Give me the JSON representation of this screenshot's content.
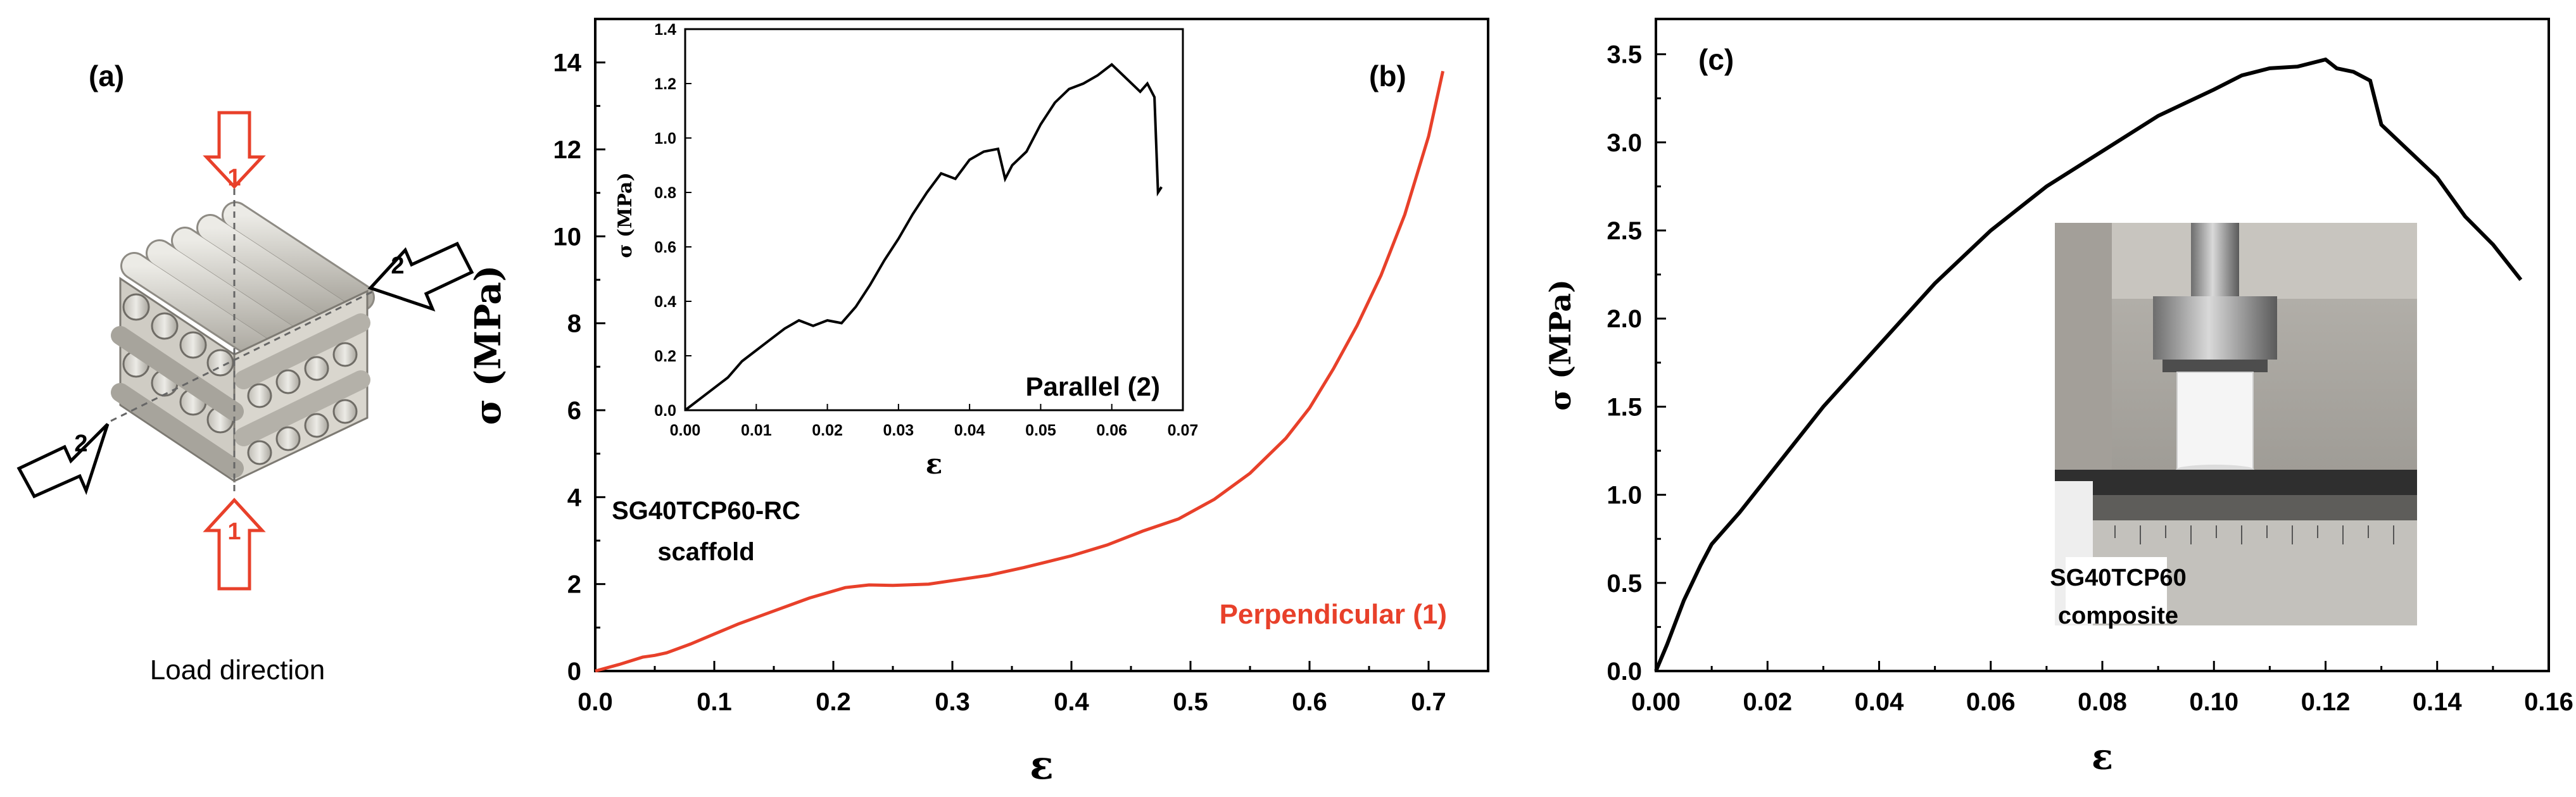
{
  "panel_a": {
    "label": "(a)",
    "caption": "Load direction",
    "dir1_top": "1",
    "dir1_bottom": "1",
    "dir2_right": "2",
    "dir2_left": "2",
    "colors": {
      "perpendicular_arrow": "#e8402a",
      "parallel_arrow": "#000000",
      "rod": "#d6d2c8"
    }
  },
  "chart_data": [
    {
      "id": "b_main",
      "type": "line",
      "panel_label": "(b)",
      "xlabel": "ε",
      "ylabel": "σ (MPa)",
      "xlim": [
        0.0,
        0.75
      ],
      "ylim": [
        0,
        15
      ],
      "xticks": [
        "0.0",
        "0.1",
        "0.2",
        "0.3",
        "0.4",
        "0.5",
        "0.6",
        "0.7"
      ],
      "yticks": [
        "0",
        "2",
        "4",
        "6",
        "8",
        "10",
        "12",
        "14"
      ],
      "annotation_line1": "SG40TCP60-RC",
      "annotation_line2": "scaffold",
      "series": [
        {
          "name": "Perpendicular (1)",
          "color": "#e8402a",
          "x": [
            0.0,
            0.02,
            0.04,
            0.05,
            0.06,
            0.08,
            0.1,
            0.12,
            0.15,
            0.18,
            0.21,
            0.23,
            0.25,
            0.28,
            0.3,
            0.33,
            0.36,
            0.4,
            0.43,
            0.46,
            0.49,
            0.52,
            0.55,
            0.58,
            0.6,
            0.62,
            0.64,
            0.66,
            0.68,
            0.7,
            0.712
          ],
          "y": [
            0.0,
            0.15,
            0.32,
            0.36,
            0.42,
            0.62,
            0.85,
            1.08,
            1.38,
            1.68,
            1.92,
            1.98,
            1.97,
            2.0,
            2.08,
            2.2,
            2.38,
            2.65,
            2.9,
            3.22,
            3.5,
            3.95,
            4.55,
            5.35,
            6.05,
            6.95,
            7.95,
            9.1,
            10.5,
            12.3,
            13.8
          ]
        }
      ]
    },
    {
      "id": "b_inset",
      "type": "line",
      "xlabel": "ε",
      "ylabel": "σ (MPa)",
      "xlim": [
        0.0,
        0.07
      ],
      "ylim": [
        0.0,
        1.4
      ],
      "xticks": [
        "0.00",
        "0.01",
        "0.02",
        "0.03",
        "0.04",
        "0.05",
        "0.06",
        "0.07"
      ],
      "yticks": [
        "0.0",
        "0.2",
        "0.4",
        "0.6",
        "0.8",
        "1.0",
        "1.2",
        "1.4"
      ],
      "series": [
        {
          "name": "Parallel (2)",
          "color": "#000000",
          "x": [
            0.0,
            0.003,
            0.006,
            0.008,
            0.01,
            0.012,
            0.014,
            0.016,
            0.018,
            0.02,
            0.022,
            0.024,
            0.026,
            0.028,
            0.03,
            0.032,
            0.034,
            0.036,
            0.038,
            0.04,
            0.042,
            0.044,
            0.045,
            0.046,
            0.048,
            0.05,
            0.052,
            0.054,
            0.056,
            0.058,
            0.06,
            0.062,
            0.064,
            0.065,
            0.066,
            0.0665,
            0.067
          ],
          "y": [
            0.0,
            0.06,
            0.12,
            0.18,
            0.22,
            0.26,
            0.3,
            0.33,
            0.31,
            0.33,
            0.32,
            0.38,
            0.46,
            0.55,
            0.63,
            0.72,
            0.8,
            0.87,
            0.85,
            0.92,
            0.95,
            0.96,
            0.85,
            0.9,
            0.95,
            1.05,
            1.13,
            1.18,
            1.2,
            1.23,
            1.27,
            1.22,
            1.17,
            1.2,
            1.15,
            0.8,
            0.82
          ]
        }
      ]
    },
    {
      "id": "c_main",
      "type": "line",
      "panel_label": "(c)",
      "xlabel": "ε",
      "ylabel": "σ (MPa)",
      "xlim": [
        0.0,
        0.16
      ],
      "ylim": [
        0.0,
        3.7
      ],
      "xticks": [
        "0.00",
        "0.02",
        "0.04",
        "0.06",
        "0.08",
        "0.10",
        "0.12",
        "0.14",
        "0.16"
      ],
      "yticks": [
        "0.0",
        "0.5",
        "1.0",
        "1.5",
        "2.0",
        "2.5",
        "3.0",
        "3.5"
      ],
      "annotation_line1": "SG40TCP60",
      "annotation_line2": "composite",
      "series": [
        {
          "name": "SG40TCP60 composite",
          "color": "#000000",
          "x": [
            0.0,
            0.002,
            0.005,
            0.008,
            0.01,
            0.015,
            0.02,
            0.03,
            0.04,
            0.05,
            0.06,
            0.07,
            0.08,
            0.09,
            0.1,
            0.105,
            0.11,
            0.115,
            0.12,
            0.122,
            0.125,
            0.128,
            0.13,
            0.135,
            0.14,
            0.145,
            0.15,
            0.155
          ],
          "y": [
            0.0,
            0.15,
            0.4,
            0.6,
            0.72,
            0.9,
            1.1,
            1.5,
            1.85,
            2.2,
            2.5,
            2.75,
            2.95,
            3.15,
            3.3,
            3.38,
            3.42,
            3.43,
            3.47,
            3.42,
            3.4,
            3.35,
            3.1,
            2.95,
            2.8,
            2.58,
            2.42,
            2.22
          ]
        }
      ]
    }
  ]
}
